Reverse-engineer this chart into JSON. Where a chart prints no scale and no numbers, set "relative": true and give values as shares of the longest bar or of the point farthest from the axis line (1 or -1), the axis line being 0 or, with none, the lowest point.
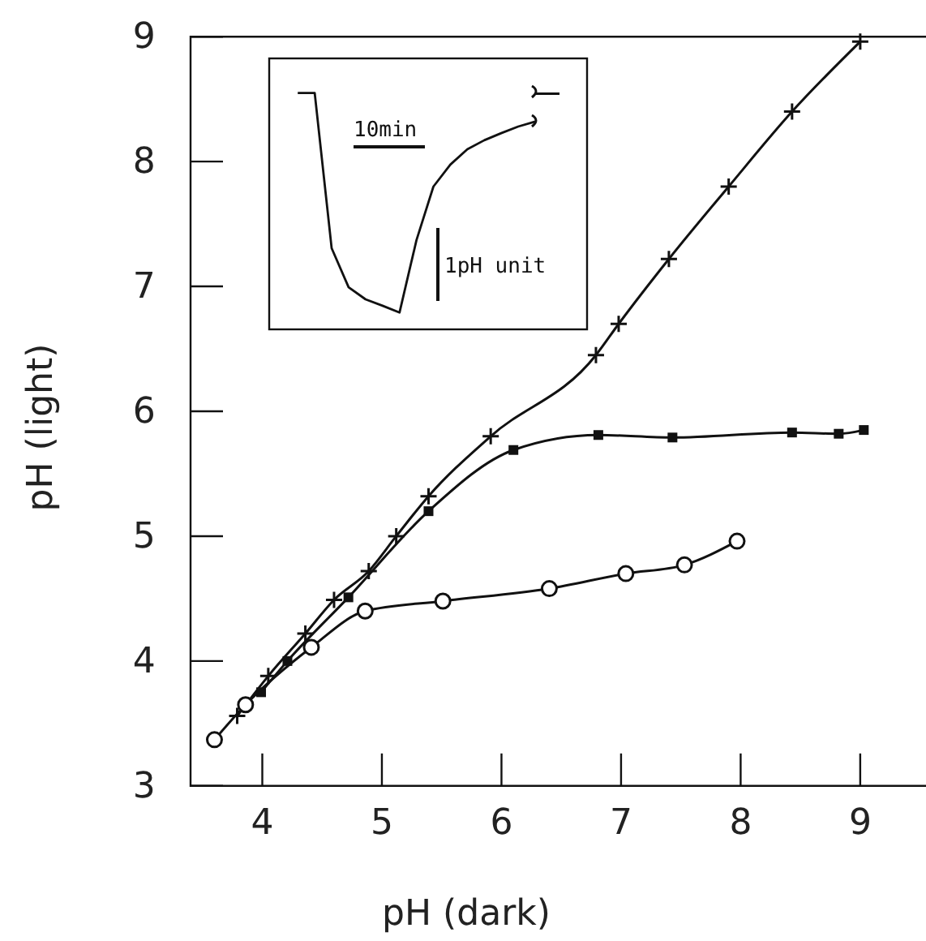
{
  "chart_data": [
    {
      "type": "line",
      "xlabel": "pH (dark)",
      "ylabel": "pH (light)",
      "xlim": [
        3.4,
        9.55
      ],
      "ylim": [
        3,
        9
      ],
      "xticks": [
        4,
        5,
        6,
        7,
        8,
        9
      ],
      "yticks": [
        3,
        4,
        5,
        6,
        7,
        8,
        9
      ],
      "legend": false,
      "series": [
        {
          "color": "#111111",
          "marker": "cross",
          "x": [
            3.79,
            4.05,
            4.36,
            4.6,
            4.89,
            5.12,
            5.39,
            5.91,
            6.79,
            6.98,
            7.4,
            7.9,
            8.43,
            9.0
          ],
          "values": [
            3.56,
            3.88,
            4.22,
            4.49,
            4.72,
            5.0,
            5.32,
            5.8,
            6.45,
            6.7,
            7.22,
            7.8,
            8.4,
            8.96
          ]
        },
        {
          "color": "#111111",
          "marker": "square",
          "x": [
            3.99,
            4.21,
            4.72,
            5.39,
            6.1,
            6.81,
            7.43,
            8.43,
            8.82,
            9.03
          ],
          "values": [
            3.75,
            4.0,
            4.51,
            5.2,
            5.69,
            5.81,
            5.79,
            5.83,
            5.82,
            5.85
          ]
        },
        {
          "color": "#111111",
          "marker": "circle",
          "x": [
            3.6,
            3.86,
            4.41,
            4.86,
            5.51,
            6.4,
            7.04,
            7.53,
            7.97
          ],
          "values": [
            3.37,
            3.65,
            4.11,
            4.4,
            4.48,
            4.58,
            4.7,
            4.77,
            4.96
          ]
        }
      ]
    },
    {
      "type": "line",
      "relative": true,
      "annotations": [
        "10min",
        "1pH unit"
      ],
      "categories": [
        null,
        null,
        null,
        null,
        null,
        null,
        null,
        null,
        null,
        null,
        null,
        null,
        null,
        null,
        null
      ],
      "series": [
        {
          "color": "#111111",
          "values": [
            1,
            1,
            0.343,
            0.178,
            0.127,
            0.1,
            0.071,
            0.377,
            0.604,
            0.697,
            0.762,
            0.8,
            0.83,
            0.858,
            0.879
          ]
        }
      ]
    }
  ]
}
